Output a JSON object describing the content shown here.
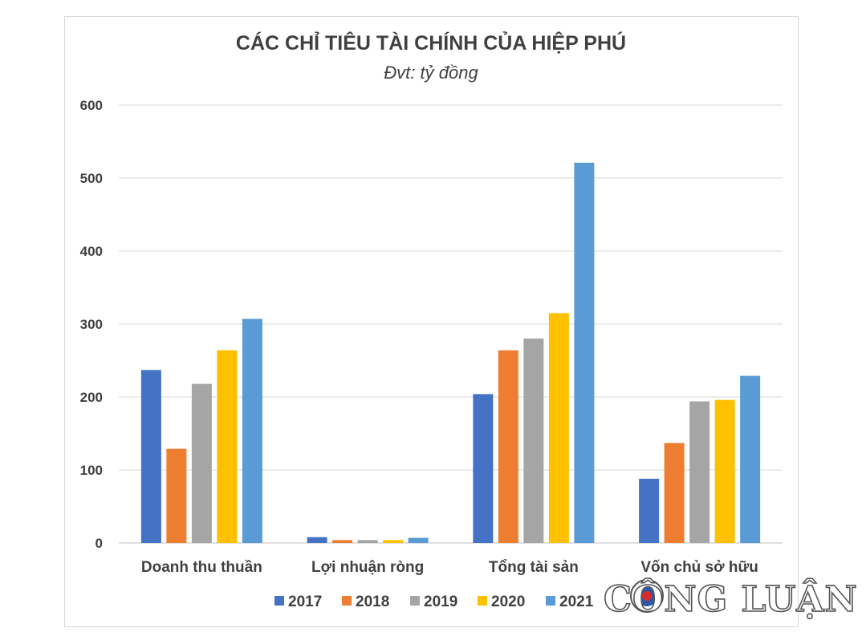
{
  "chart_data": {
    "type": "bar",
    "title": "CÁC CHỈ TIÊU TÀI CHÍNH CỦA HIỆP PHÚ",
    "subtitle": "Đvt: tỷ đồng",
    "categories": [
      "Doanh thu thuần",
      "Lợi nhuận ròng",
      "Tổng tài sản",
      "Vốn chủ sở hữu"
    ],
    "series": [
      {
        "name": "2017",
        "color": "#4472C4",
        "values": [
          237,
          8,
          204,
          88
        ]
      },
      {
        "name": "2018",
        "color": "#ED7D31",
        "values": [
          129,
          4,
          264,
          137
        ]
      },
      {
        "name": "2019",
        "color": "#A5A5A5",
        "values": [
          218,
          4,
          280,
          194
        ]
      },
      {
        "name": "2020",
        "color": "#FFC000",
        "values": [
          264,
          4,
          315,
          196
        ]
      },
      {
        "name": "2021",
        "color": "#5B9BD5",
        "values": [
          307,
          7,
          521,
          229
        ]
      }
    ],
    "ylim": [
      0,
      600
    ],
    "yticks": [
      0,
      100,
      200,
      300,
      400,
      500,
      600
    ],
    "grid": true,
    "legend": "bottom"
  },
  "watermark": {
    "text": "CÔNG LUẬN",
    "icon": "press-emblem-icon"
  }
}
